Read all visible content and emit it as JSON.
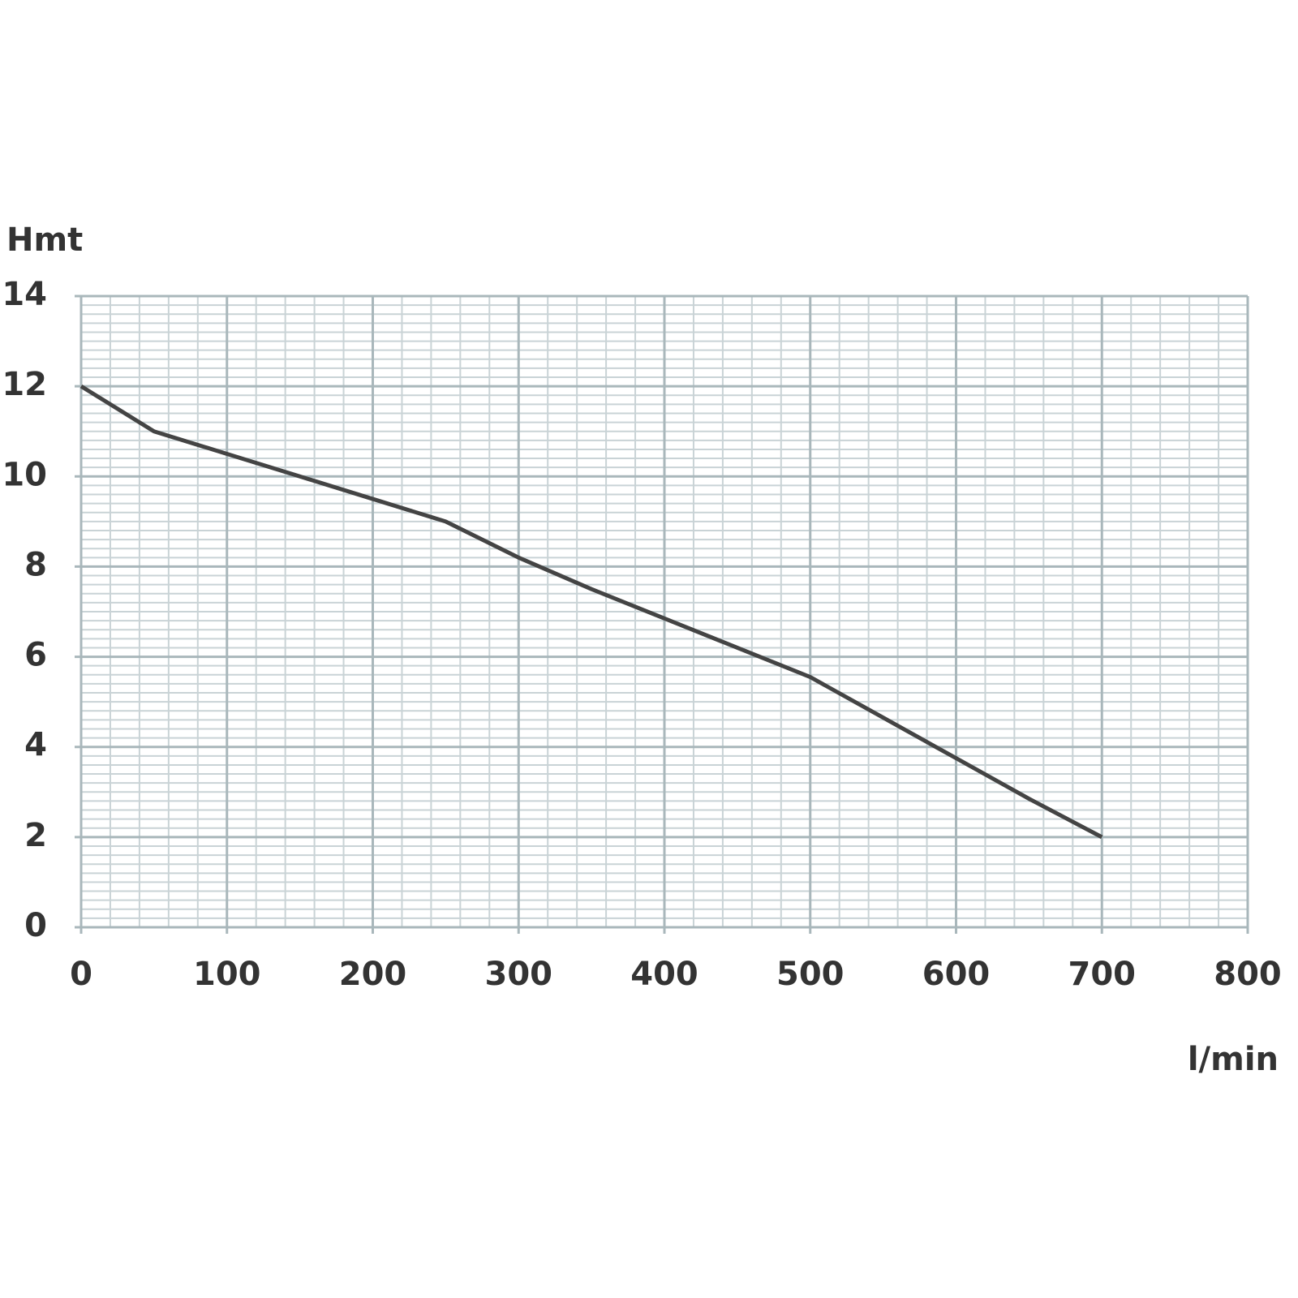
{
  "chart_data": {
    "type": "line",
    "y_label": "Hmt",
    "x_label": "l/min",
    "xlim": [
      0,
      800
    ],
    "xticks": [
      0,
      100,
      200,
      300,
      400,
      500,
      600,
      700,
      800
    ],
    "ylim": [
      0,
      14
    ],
    "yticks": [
      0,
      2,
      4,
      6,
      8,
      10,
      12,
      14
    ],
    "grid": true,
    "series": [
      {
        "color": "#444444",
        "x": [
          0,
          50,
          100,
          150,
          200,
          250,
          300,
          350,
          400,
          450,
          500,
          550,
          600,
          650,
          700
        ],
        "values": [
          12,
          11,
          10.5,
          10,
          9.5,
          9,
          8.2,
          7.5,
          6.85,
          6.2,
          5.55,
          4.65,
          3.75,
          2.85,
          2
        ]
      }
    ]
  }
}
